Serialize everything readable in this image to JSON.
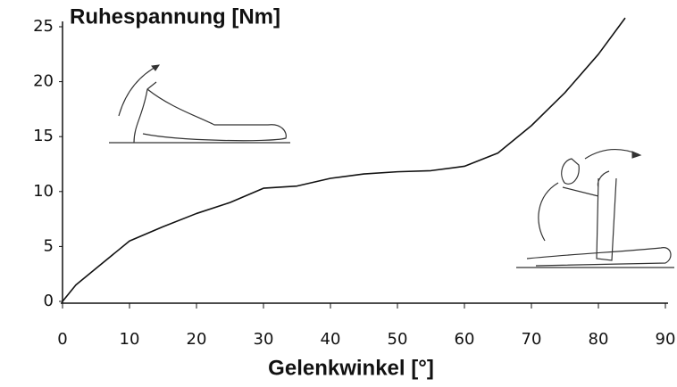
{
  "chart_data": {
    "type": "line",
    "title": "Ruhespannung [Nm]",
    "x_label": "Gelenkwinkel [°]",
    "x": [
      0,
      2,
      5,
      8,
      10,
      15,
      20,
      25,
      30,
      35,
      40,
      45,
      50,
      55,
      60,
      65,
      70,
      75,
      80,
      84
    ],
    "values": [
      0,
      1.5,
      3,
      4.5,
      5.5,
      6.8,
      8,
      9,
      10.3,
      10.5,
      11.2,
      11.6,
      11.8,
      11.9,
      12.3,
      13.5,
      16,
      19,
      22.5,
      25.8
    ],
    "color": "#111111",
    "xlim": [
      0,
      90
    ],
    "xticks": [
      0,
      10,
      20,
      30,
      40,
      50,
      60,
      70,
      80,
      90
    ],
    "ylim": [
      0,
      25
    ],
    "yticks": [
      0,
      5,
      10,
      15,
      20,
      25
    ],
    "grid": false
  }
}
